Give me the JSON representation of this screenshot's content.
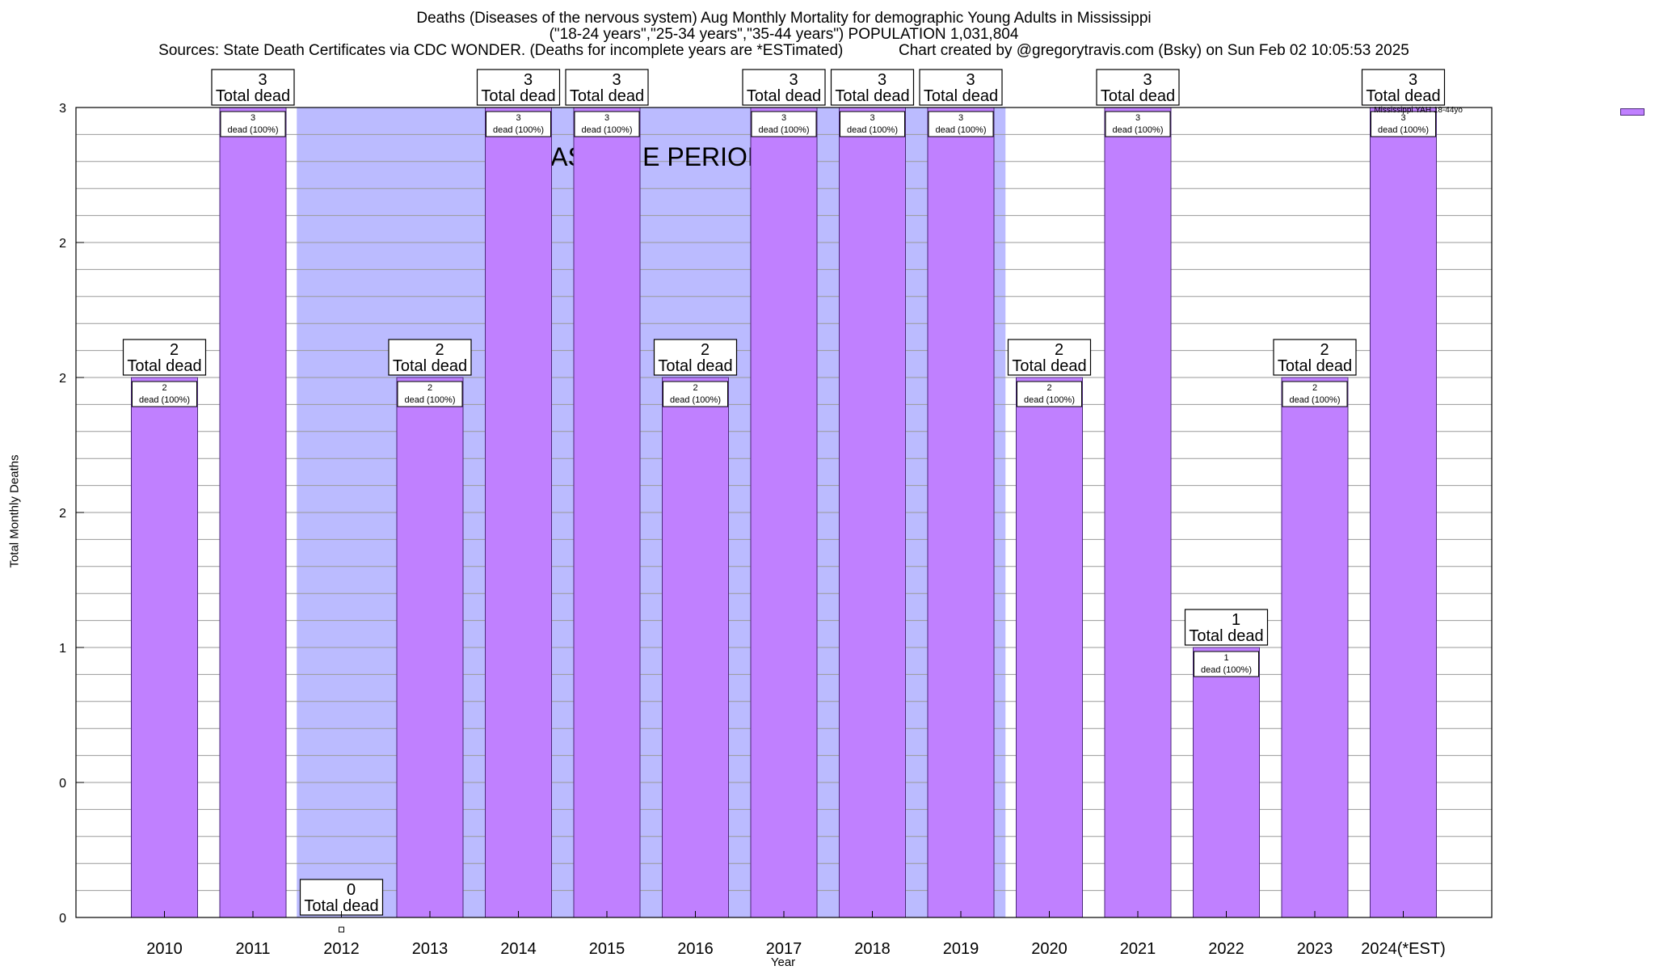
{
  "header": {
    "line1": "Deaths (Diseases of the nervous system) Aug Monthly Mortality for demographic Young Adults in Mississippi",
    "line2": "(\"18-24 years\",\"25-34 years\",\"35-44 years\") POPULATION 1,031,804",
    "line3": "Sources: State Death Certificates via CDC WONDER. (Deaths for incomplete years are *ESTimated)             Chart created by @gregorytravis.com (Bsky) on Sun Feb 02 10:05:53 2025"
  },
  "chart_data": {
    "type": "bar",
    "categories": [
      "2010",
      "2011",
      "2012",
      "2013",
      "2014",
      "2015",
      "2016",
      "2017",
      "2018",
      "2019",
      "2020",
      "2021",
      "2022",
      "2023",
      "2024(*EST)"
    ],
    "series": [
      {
        "name": "Mississippi YAH 18-44yo",
        "values": [
          2,
          3,
          0,
          2,
          3,
          3,
          2,
          3,
          3,
          3,
          2,
          3,
          1,
          2,
          3
        ]
      }
    ],
    "total_label_suffix": "Total dead",
    "bar_label_suffix": "dead (100%)",
    "xlabel": "Year",
    "ylabel": "Total Monthly Deaths",
    "ylim": [
      0,
      3
    ],
    "y_tick_labels": [
      "0",
      "0",
      "1",
      "2",
      "2",
      "2",
      "3"
    ],
    "baseline_label": "BASELINE PERIOD",
    "baseline_start": "2012",
    "baseline_end": "2019",
    "grid": true,
    "legend_position": "top-right",
    "colors": {
      "bar": "#c080ff",
      "bar_edge": "#4b2a7a",
      "baseline": "#bbbbff"
    }
  }
}
